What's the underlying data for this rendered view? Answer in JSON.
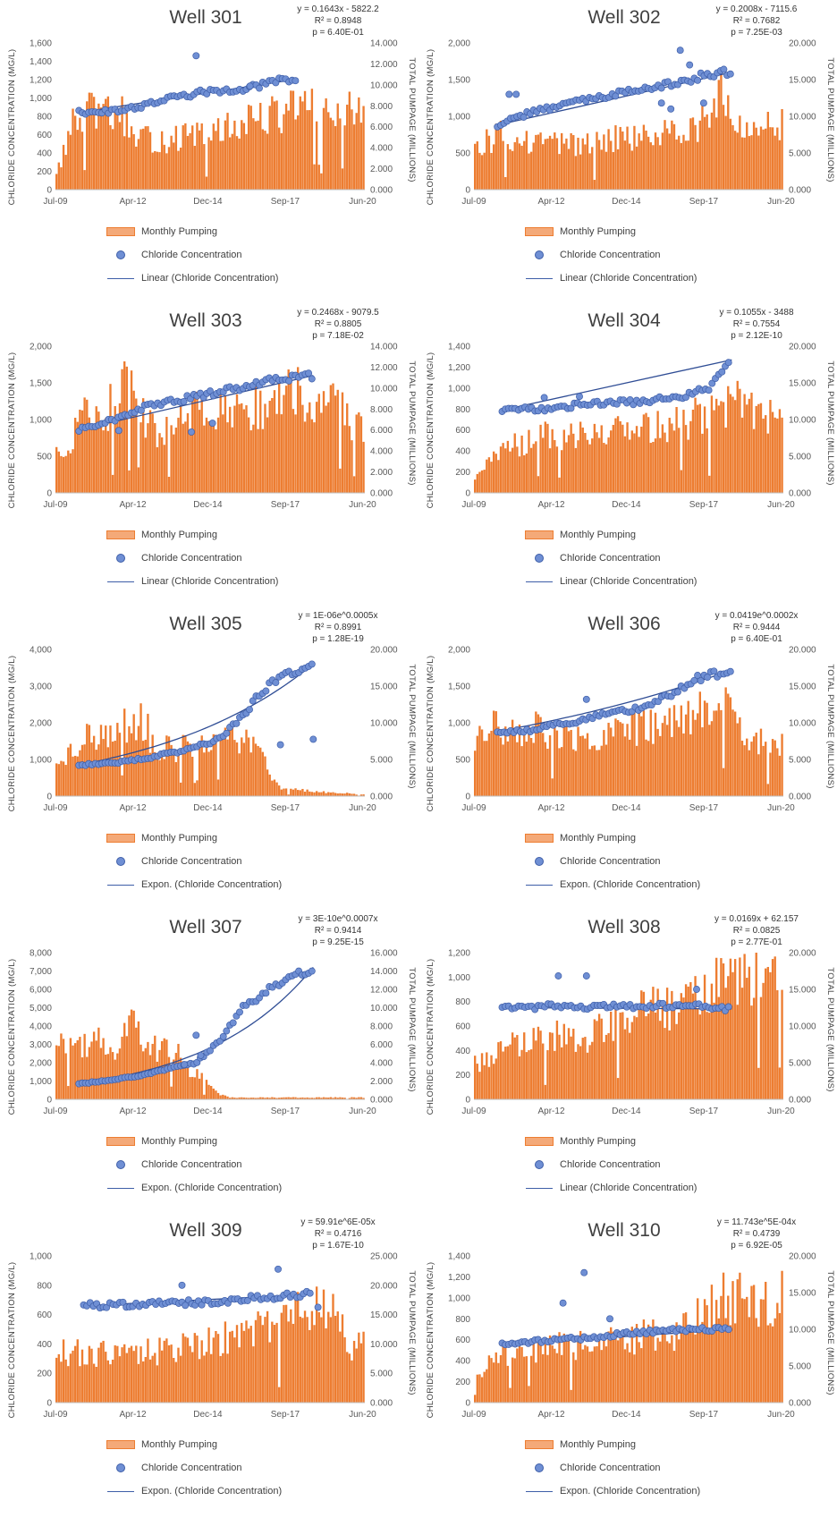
{
  "legend_labels": {
    "bar": "Monthly Pumping",
    "dots": "Chloride Concentration",
    "linear": "Linear (Chloride Concentration)",
    "expon": "Expon. (Chloride Concentration)"
  },
  "axis_titles": {
    "left": "CHLORIDE CONCENTRATION (MG/L)",
    "right": "TOTAL PUMPAGE (MILLIONS)"
  },
  "x_ticks": [
    "Jul-09",
    "Apr-12",
    "Dec-14",
    "Sep-17",
    "Jun-20"
  ],
  "colors": {
    "bar_fill": "#ed7d31",
    "marker": "#6f8fd4",
    "marker_edge": "#3e5ea8",
    "trend": "#2f4d95"
  },
  "chart_data": [
    {
      "type": "bar+scatter",
      "title": "Well 301",
      "equation": "y = 0.1643x - 5822.2",
      "r2_label": "R² = 0.8948",
      "p_label": "p = 6.40E-01",
      "trend_type": "linear",
      "y1_ticks": [
        "0",
        "200",
        "400",
        "600",
        "800",
        "1,000",
        "1,200",
        "1,400",
        "1,600"
      ],
      "y1_lim": [
        0,
        1600
      ],
      "y2_ticks": [
        "0.000",
        "2.000",
        "4.000",
        "6.000",
        "8.000",
        "10.000",
        "12.000",
        "14.000"
      ],
      "y2_lim": [
        0,
        14
      ],
      "pumping_profile": [
        [
          0,
          1.8
        ],
        [
          3,
          3.5
        ],
        [
          6,
          6
        ],
        [
          12,
          7.5
        ],
        [
          30,
          7.2
        ],
        [
          33,
          4.8
        ],
        [
          45,
          4.9
        ],
        [
          60,
          5.2
        ],
        [
          72,
          5.8
        ],
        [
          84,
          7.0
        ],
        [
          95,
          7.4
        ],
        [
          102,
          8.2
        ],
        [
          115,
          7.6
        ],
        [
          132,
          7.5
        ]
      ],
      "chloride_profile": [
        [
          10,
          840
        ],
        [
          30,
          870
        ],
        [
          46,
          980
        ],
        [
          60,
          1050
        ],
        [
          72,
          1080
        ],
        [
          87,
          1130
        ],
        [
          96,
          1200
        ],
        [
          103,
          1205
        ]
      ],
      "outliers": [
        [
          60,
          1460
        ],
        [
          83,
          1130
        ]
      ]
    },
    {
      "type": "bar+scatter",
      "title": "Well 302",
      "equation": "y = 0.2008x - 7115.6",
      "r2_label": "R² = 0.7682",
      "p_label": "p = 7.25E-03",
      "trend_type": "linear",
      "y1_ticks": [
        "0",
        "500",
        "1,000",
        "1,500",
        "2,000"
      ],
      "y1_lim": [
        0,
        2000
      ],
      "y2_ticks": [
        "0.000",
        "5.000",
        "10.000",
        "15.000",
        "20.000"
      ],
      "y2_lim": [
        0,
        20
      ],
      "pumping_profile": [
        [
          0,
          6
        ],
        [
          8,
          7
        ],
        [
          12,
          8
        ],
        [
          20,
          6.5
        ],
        [
          45,
          6.2
        ],
        [
          60,
          7.2
        ],
        [
          75,
          7.8
        ],
        [
          90,
          8.4
        ],
        [
          100,
          9.5
        ],
        [
          104,
          14
        ],
        [
          110,
          9
        ],
        [
          125,
          10
        ],
        [
          132,
          9
        ]
      ],
      "chloride_profile": [
        [
          10,
          880
        ],
        [
          24,
          1050
        ],
        [
          45,
          1200
        ],
        [
          60,
          1300
        ],
        [
          75,
          1380
        ],
        [
          90,
          1480
        ],
        [
          100,
          1580
        ],
        [
          110,
          1600
        ]
      ],
      "outliers": [
        [
          15,
          1300
        ],
        [
          18,
          1300
        ],
        [
          80,
          1180
        ],
        [
          84,
          1100
        ],
        [
          88,
          1900
        ],
        [
          92,
          1700
        ],
        [
          98,
          1180
        ]
      ]
    },
    {
      "type": "bar+scatter",
      "title": "Well 303",
      "equation": "y = 0.2468x - 9079.5",
      "r2_label": "R² = 0.8805",
      "p_label": "p = 7.18E-02",
      "trend_type": "linear",
      "y1_ticks": [
        "0",
        "500",
        "1,000",
        "1,500",
        "2,000"
      ],
      "y1_lim": [
        0,
        2000
      ],
      "y2_ticks": [
        "0.000",
        "2.000",
        "4.000",
        "6.000",
        "8.000",
        "10.000",
        "12.000",
        "14.000"
      ],
      "y2_lim": [
        0,
        14
      ],
      "pumping_profile": [
        [
          0,
          3.5
        ],
        [
          6,
          5
        ],
        [
          12,
          7.5
        ],
        [
          24,
          8.5
        ],
        [
          30,
          10.5
        ],
        [
          36,
          7.5
        ],
        [
          45,
          5.5
        ],
        [
          60,
          8
        ],
        [
          75,
          8
        ],
        [
          90,
          8.5
        ],
        [
          102,
          10
        ],
        [
          115,
          9
        ],
        [
          132,
          6
        ]
      ],
      "chloride_profile": [
        [
          10,
          860
        ],
        [
          24,
          990
        ],
        [
          36,
          1150
        ],
        [
          48,
          1240
        ],
        [
          63,
          1330
        ],
        [
          80,
          1440
        ],
        [
          95,
          1560
        ],
        [
          110,
          1600
        ]
      ],
      "outliers": [
        [
          27,
          850
        ],
        [
          58,
          830
        ],
        [
          67,
          950
        ]
      ]
    },
    {
      "type": "bar+scatter",
      "title": "Well 304",
      "equation": "y = 0.1055x - 3488",
      "r2_label": "R² = 0.7554",
      "p_label": "p = 2.12E-10",
      "trend_type": "linear",
      "y1_ticks": [
        "0",
        "200",
        "400",
        "600",
        "800",
        "1,000",
        "1,200",
        "1,400"
      ],
      "y1_lim": [
        0,
        1400
      ],
      "y2_ticks": [
        "0.000",
        "5.000",
        "10.000",
        "15.000",
        "20.000"
      ],
      "y2_lim": [
        0,
        20
      ],
      "pumping_profile": [
        [
          0,
          2
        ],
        [
          6,
          5
        ],
        [
          12,
          6.5
        ],
        [
          30,
          8
        ],
        [
          48,
          8.5
        ],
        [
          60,
          8.5
        ],
        [
          80,
          9.5
        ],
        [
          100,
          11
        ],
        [
          110,
          13
        ],
        [
          118,
          12
        ],
        [
          132,
          11
        ]
      ],
      "chloride_profile": [
        [
          12,
          790
        ],
        [
          30,
          800
        ],
        [
          50,
          850
        ],
        [
          70,
          870
        ],
        [
          90,
          920
        ],
        [
          100,
          1000
        ],
        [
          105,
          1150
        ],
        [
          110,
          1270
        ]
      ],
      "outliers": [
        [
          30,
          910
        ],
        [
          45,
          920
        ]
      ]
    },
    {
      "type": "bar+scatter",
      "title": "Well 305",
      "equation": "y = 1E-06e^0.0005x",
      "r2_label": "R² = 0.8991",
      "p_label": "p = 1.28E-19",
      "trend_type": "expon",
      "y1_ticks": [
        "0",
        "1,000",
        "2,000",
        "3,000",
        "4,000"
      ],
      "y1_lim": [
        0,
        4000
      ],
      "y2_ticks": [
        "0.000",
        "5.000",
        "10.000",
        "15.000",
        "20.000"
      ],
      "y2_lim": [
        0,
        20
      ],
      "pumping_profile": [
        [
          0,
          4
        ],
        [
          6,
          6
        ],
        [
          12,
          8
        ],
        [
          24,
          9
        ],
        [
          36,
          11
        ],
        [
          42,
          7
        ],
        [
          50,
          6.5
        ],
        [
          70,
          8
        ],
        [
          85,
          7
        ],
        [
          92,
          2.5
        ],
        [
          96,
          1
        ],
        [
          132,
          0.2
        ]
      ],
      "chloride_profile": [
        [
          10,
          850
        ],
        [
          24,
          900
        ],
        [
          40,
          1050
        ],
        [
          55,
          1250
        ],
        [
          70,
          1550
        ],
        [
          80,
          2200
        ],
        [
          88,
          2850
        ],
        [
          95,
          3200
        ],
        [
          110,
          3600
        ]
      ],
      "outliers": [
        [
          96,
          1400
        ],
        [
          110,
          1550
        ]
      ]
    },
    {
      "type": "bar+scatter",
      "title": "Well 306",
      "equation": "y = 0.0419e^0.0002x",
      "r2_label": "R² = 0.9444",
      "p_label": "p = 6.40E-01",
      "trend_type": "expon",
      "y1_ticks": [
        "0",
        "500",
        "1,000",
        "1,500",
        "2,000"
      ],
      "y1_lim": [
        0,
        2000
      ],
      "y2_ticks": [
        "0.000",
        "5.000",
        "10.000",
        "15.000",
        "20.000"
      ],
      "y2_lim": [
        0,
        20
      ],
      "pumping_profile": [
        [
          0,
          8
        ],
        [
          6,
          10
        ],
        [
          24,
          9.5
        ],
        [
          36,
          9
        ],
        [
          50,
          8
        ],
        [
          65,
          9.5
        ],
        [
          80,
          10
        ],
        [
          100,
          12
        ],
        [
          106,
          14
        ],
        [
          115,
          8
        ],
        [
          132,
          7
        ]
      ],
      "chloride_profile": [
        [
          10,
          880
        ],
        [
          24,
          900
        ],
        [
          40,
          1000
        ],
        [
          55,
          1100
        ],
        [
          70,
          1200
        ],
        [
          85,
          1400
        ],
        [
          95,
          1600
        ],
        [
          110,
          1720
        ]
      ],
      "outliers": [
        [
          48,
          1320
        ]
      ]
    },
    {
      "type": "bar+scatter",
      "title": "Well 307",
      "equation": "y = 3E-10e^0.0007x",
      "r2_label": "R² = 0.9414",
      "p_label": "p = 9.25E-15",
      "trend_type": "expon",
      "y1_ticks": [
        "0",
        "1,000",
        "2,000",
        "3,000",
        "4,000",
        "5,000",
        "6,000",
        "7,000",
        "8,000"
      ],
      "y1_lim": [
        0,
        8000
      ],
      "y2_ticks": [
        "0.000",
        "2.000",
        "4.000",
        "6.000",
        "8.000",
        "10.000",
        "12.000",
        "14.000",
        "16.000"
      ],
      "y2_lim": [
        0,
        16
      ],
      "pumping_profile": [
        [
          0,
          6
        ],
        [
          12,
          6.5
        ],
        [
          28,
          6
        ],
        [
          32,
          10
        ],
        [
          36,
          7
        ],
        [
          44,
          5.5
        ],
        [
          52,
          5
        ],
        [
          58,
          3
        ],
        [
          64,
          2.5
        ],
        [
          70,
          0.5
        ],
        [
          74,
          0.2
        ],
        [
          132,
          0.2
        ]
      ],
      "chloride_profile": [
        [
          10,
          850
        ],
        [
          24,
          1050
        ],
        [
          36,
          1300
        ],
        [
          48,
          1650
        ],
        [
          60,
          2000
        ],
        [
          70,
          3200
        ],
        [
          80,
          5000
        ],
        [
          95,
          6300
        ],
        [
          110,
          7200
        ]
      ],
      "outliers": [
        [
          55,
          1900
        ],
        [
          60,
          3500
        ],
        [
          62,
          2400
        ]
      ]
    },
    {
      "type": "bar+scatter",
      "title": "Well 308",
      "equation": "y = 0.0169x + 62.157",
      "r2_label": "R² = 0.0825",
      "p_label": "p = 2.77E-01",
      "trend_type": "linear",
      "y1_ticks": [
        "0",
        "200",
        "400",
        "600",
        "800",
        "1,000",
        "1,200"
      ],
      "y1_lim": [
        0,
        1200
      ],
      "y2_ticks": [
        "0.000",
        "5.000",
        "10.000",
        "15.000",
        "20.000"
      ],
      "y2_lim": [
        0,
        20
      ],
      "pumping_profile": [
        [
          0,
          5
        ],
        [
          12,
          7
        ],
        [
          24,
          8
        ],
        [
          36,
          9
        ],
        [
          48,
          9
        ],
        [
          60,
          11
        ],
        [
          72,
          12
        ],
        [
          84,
          13
        ],
        [
          96,
          15
        ],
        [
          108,
          16
        ],
        [
          120,
          17
        ],
        [
          132,
          16
        ]
      ],
      "chloride_profile": [
        [
          12,
          750
        ],
        [
          30,
          760
        ],
        [
          50,
          760
        ],
        [
          70,
          760
        ],
        [
          90,
          770
        ],
        [
          110,
          740
        ]
      ],
      "outliers": [
        [
          36,
          1010
        ],
        [
          48,
          1010
        ],
        [
          95,
          900
        ]
      ]
    },
    {
      "type": "bar+scatter",
      "title": "Well 309",
      "equation": "y = 59.91e^6E-05x",
      "r2_label": "R² = 0.4716",
      "p_label": "p = 1.67E-10",
      "trend_type": "expon",
      "y1_ticks": [
        "0",
        "200",
        "400",
        "600",
        "800",
        "1,000"
      ],
      "y1_lim": [
        0,
        1000
      ],
      "y2_ticks": [
        "0.000",
        "5.000",
        "10.000",
        "15.000",
        "20.000",
        "25.000"
      ],
      "y2_lim": [
        0,
        25
      ],
      "pumping_profile": [
        [
          0,
          9
        ],
        [
          12,
          8.5
        ],
        [
          30,
          8.5
        ],
        [
          48,
          9
        ],
        [
          60,
          10
        ],
        [
          80,
          12
        ],
        [
          96,
          14
        ],
        [
          104,
          17
        ],
        [
          112,
          16
        ],
        [
          120,
          15
        ],
        [
          126,
          8
        ],
        [
          132,
          12
        ]
      ],
      "chloride_profile": [
        [
          12,
          660
        ],
        [
          30,
          670
        ],
        [
          50,
          680
        ],
        [
          70,
          690
        ],
        [
          90,
          720
        ],
        [
          110,
          740
        ]
      ],
      "outliers": [
        [
          54,
          800
        ],
        [
          95,
          910
        ],
        [
          112,
          650
        ]
      ]
    },
    {
      "type": "bar+scatter",
      "title": "Well 310",
      "equation": "y = 11.743e^5E-04x",
      "r2_label": "R² = 0.4739",
      "p_label": "p = 6.92E-05",
      "trend_type": "expon",
      "y1_ticks": [
        "0",
        "200",
        "400",
        "600",
        "800",
        "1,000",
        "1,200",
        "1,400"
      ],
      "y1_lim": [
        0,
        1400
      ],
      "y2_ticks": [
        "0.000",
        "5.000",
        "10.000",
        "15.000",
        "20.000"
      ],
      "y2_lim": [
        0,
        20
      ],
      "pumping_profile": [
        [
          0,
          4
        ],
        [
          12,
          7
        ],
        [
          30,
          7.5
        ],
        [
          50,
          8.5
        ],
        [
          70,
          9
        ],
        [
          90,
          10
        ],
        [
          100,
          13
        ],
        [
          110,
          15
        ],
        [
          120,
          14
        ],
        [
          132,
          15
        ]
      ],
      "chloride_profile": [
        [
          12,
          560
        ],
        [
          30,
          590
        ],
        [
          50,
          620
        ],
        [
          70,
          670
        ],
        [
          90,
          700
        ],
        [
          110,
          700
        ]
      ],
      "outliers": [
        [
          47,
          1240
        ],
        [
          38,
          950
        ],
        [
          58,
          800
        ]
      ]
    }
  ]
}
